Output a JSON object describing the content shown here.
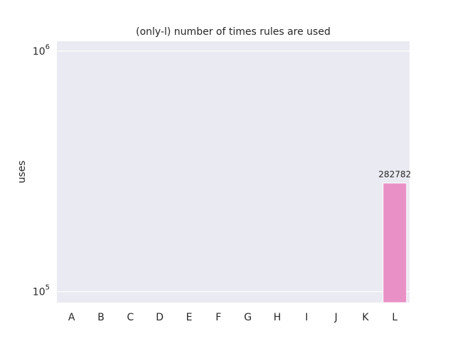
{
  "chart_data": {
    "type": "bar",
    "title": "(only-l) number of times rules are used",
    "xlabel": "",
    "ylabel": "uses",
    "yscale": "log",
    "ylim": [
      90000,
      1100000
    ],
    "grid": true,
    "categories": [
      "A",
      "B",
      "C",
      "D",
      "E",
      "F",
      "G",
      "H",
      "I",
      "J",
      "K",
      "L"
    ],
    "values": [
      0,
      0,
      0,
      0,
      0,
      0,
      0,
      0,
      0,
      0,
      0,
      282782
    ],
    "data_labels": [
      "",
      "",
      "",
      "",
      "",
      "",
      "",
      "",
      "",
      "",
      "",
      "282782"
    ],
    "y_ticks": [
      {
        "value": 100000,
        "base": "10",
        "exp": "5"
      },
      {
        "value": 1000000,
        "base": "10",
        "exp": "6"
      }
    ],
    "colors": {
      "background": "#eaeaf2",
      "grid": "#ffffff",
      "bar_L": "#e991c7"
    }
  }
}
